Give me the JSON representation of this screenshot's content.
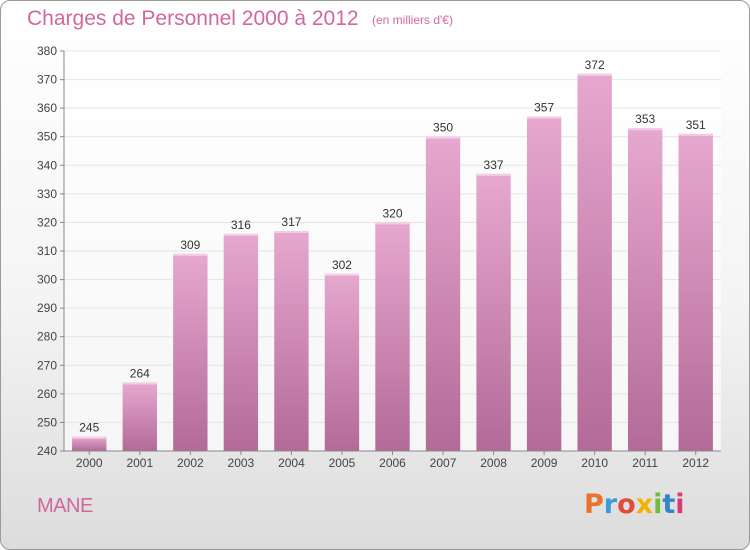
{
  "header": {
    "title": "Charges de Personnel 2000 à 2012",
    "unit": "(en milliers d'€)"
  },
  "footer": {
    "place": "MANE",
    "logo_text": "Proxiti",
    "logo_colors": [
      "#e8732a",
      "#3f9bd6",
      "#e14b3a",
      "#f0b400",
      "#6cbf3c",
      "#2f86c8",
      "#d93a7a"
    ]
  },
  "colors": {
    "bar_light": "#e6a8cf",
    "bar_dark": "#b36a98",
    "text_pink": "#d0689e",
    "grid": "#e4e4e4"
  },
  "chart_data": {
    "type": "bar",
    "categories": [
      "2000",
      "2001",
      "2002",
      "2003",
      "2004",
      "2005",
      "2006",
      "2007",
      "2008",
      "2009",
      "2010",
      "2011",
      "2012"
    ],
    "values": [
      245,
      264,
      309,
      316,
      317,
      302,
      320,
      350,
      337,
      357,
      372,
      353,
      351
    ],
    "title": "Charges de Personnel 2000 à 2012",
    "ylabel": "",
    "xlabel": "",
    "ylim": [
      240,
      380
    ],
    "yticks": [
      240,
      250,
      260,
      270,
      280,
      290,
      300,
      310,
      320,
      330,
      340,
      350,
      360,
      370,
      380
    ],
    "grid": true
  }
}
